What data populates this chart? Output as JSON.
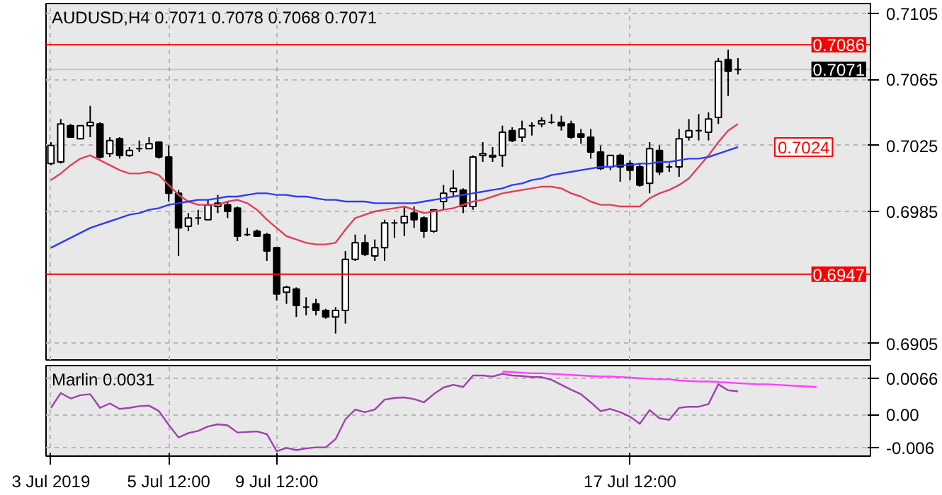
{
  "chart_data": [
    {
      "type": "candlestick",
      "title": "AUDUSD,H4  0.7071 0.7078 0.7068 0.7071",
      "categories": [
        null,
        null,
        null,
        null,
        null,
        null,
        null,
        null,
        null,
        null,
        null,
        null,
        null,
        null,
        null,
        null,
        null,
        null,
        null,
        null,
        null,
        null,
        null,
        null,
        null,
        null,
        null,
        null,
        null,
        null,
        null,
        null,
        null,
        null,
        null,
        null,
        null,
        null,
        null,
        null,
        null,
        null,
        null,
        null,
        null,
        null,
        null,
        null,
        null,
        null,
        null,
        null,
        null,
        null,
        null,
        null,
        null,
        null,
        null,
        null,
        null,
        null,
        null,
        null,
        null,
        null,
        null,
        null,
        null,
        null,
        null,
        null,
        null,
        null,
        null,
        null,
        null,
        null,
        null,
        null,
        null,
        null,
        null,
        null
      ],
      "ohlc": [
        [
          0.7014,
          0.7027,
          0.7013,
          0.7025
        ],
        [
          0.7015,
          0.7041,
          0.7014,
          0.7038
        ],
        [
          0.7037,
          0.7038,
          0.703,
          0.703
        ],
        [
          0.7029,
          0.7037,
          0.7029,
          0.7037
        ],
        [
          0.7037,
          0.7049,
          0.703,
          0.7039
        ],
        [
          0.7038,
          0.7039,
          0.7017,
          0.7018
        ],
        [
          0.702,
          0.703,
          0.7018,
          0.7028
        ],
        [
          0.7029,
          0.703,
          0.7017,
          0.7019
        ],
        [
          0.7019,
          0.7024,
          0.7018,
          0.7022
        ],
        [
          0.7023,
          0.7028,
          0.7021,
          0.7023
        ],
        [
          0.7023,
          0.703,
          0.7023,
          0.7026
        ],
        [
          0.7027,
          0.7027,
          0.7017,
          0.7018
        ],
        [
          0.7018,
          0.7025,
          0.6991,
          0.6996
        ],
        [
          0.6996,
          0.6998,
          0.6958,
          0.6975
        ],
        [
          0.6976,
          0.6984,
          0.6973,
          0.6981
        ],
        [
          0.6981,
          0.6986,
          0.6977,
          0.6981
        ],
        [
          0.698,
          0.6992,
          0.698,
          0.6989
        ],
        [
          0.6988,
          0.6995,
          0.6984,
          0.699
        ],
        [
          0.6989,
          0.6991,
          0.6981,
          0.6985
        ],
        [
          0.6987,
          0.6988,
          0.6967,
          0.697
        ],
        [
          0.6971,
          0.6975,
          0.697,
          0.6971
        ],
        [
          0.6973,
          0.6974,
          0.697,
          0.697
        ],
        [
          0.6971,
          0.6972,
          0.6955,
          0.6961
        ],
        [
          0.6963,
          0.6963,
          0.6931,
          0.6935
        ],
        [
          0.6936,
          0.694,
          0.6929,
          0.6939
        ],
        [
          0.6938,
          0.6939,
          0.6921,
          0.6928
        ],
        [
          0.6927,
          0.6933,
          0.6922,
          0.6927
        ],
        [
          0.6929,
          0.6932,
          0.6922,
          0.6925
        ],
        [
          0.6925,
          0.6926,
          0.692,
          0.6921
        ],
        [
          0.6921,
          0.6927,
          0.6911,
          0.6925
        ],
        [
          0.6925,
          0.6961,
          0.6917,
          0.6956
        ],
        [
          0.6956,
          0.6971,
          0.6955,
          0.6966
        ],
        [
          0.6966,
          0.6971,
          0.6958,
          0.6959
        ],
        [
          0.6958,
          0.6968,
          0.6955,
          0.6963
        ],
        [
          0.6963,
          0.698,
          0.6955,
          0.6978
        ],
        [
          0.6978,
          0.698,
          0.6969,
          0.6978
        ],
        [
          0.6978,
          0.6988,
          0.697,
          0.6982
        ],
        [
          0.6984,
          0.6988,
          0.6975,
          0.698
        ],
        [
          0.6981,
          0.6982,
          0.6969,
          0.6973
        ],
        [
          0.6973,
          0.6986,
          0.6972,
          0.6986
        ],
        [
          0.6991,
          0.7001,
          0.6986,
          0.6996
        ],
        [
          0.6997,
          0.701,
          0.6994,
          0.6999
        ],
        [
          0.6998,
          0.6999,
          0.6984,
          0.6988
        ],
        [
          0.6988,
          0.7019,
          0.6986,
          0.7018
        ],
        [
          0.7019,
          0.7027,
          0.7015,
          0.702
        ],
        [
          0.7018,
          0.7024,
          0.7015,
          0.7019
        ],
        [
          0.7019,
          0.7037,
          0.7012,
          0.7033
        ],
        [
          0.7034,
          0.7036,
          0.7027,
          0.7028
        ],
        [
          0.703,
          0.704,
          0.7027,
          0.7035
        ],
        [
          0.7037,
          0.7039,
          0.7031,
          0.7037
        ],
        [
          0.7038,
          0.7042,
          0.7036,
          0.704
        ],
        [
          0.7039,
          0.7044,
          0.7038,
          0.7039
        ],
        [
          0.7039,
          0.7043,
          0.7034,
          0.7037
        ],
        [
          0.7038,
          0.704,
          0.7029,
          0.703
        ],
        [
          0.7032,
          0.7035,
          0.7026,
          0.703
        ],
        [
          0.703,
          0.7035,
          0.7017,
          0.7021
        ],
        [
          0.7021,
          0.7025,
          0.701,
          0.7011
        ],
        [
          0.7012,
          0.7019,
          0.701,
          0.7019
        ],
        [
          0.7019,
          0.702,
          0.7003,
          0.7012
        ],
        [
          0.7014,
          0.7016,
          0.7004,
          0.701
        ],
        [
          0.7012,
          0.7014,
          0.7,
          0.7001
        ],
        [
          0.7002,
          0.7027,
          0.6996,
          0.7023
        ],
        [
          0.7022,
          0.7025,
          0.7007,
          0.7009
        ],
        [
          0.7012,
          0.7014,
          0.7009,
          0.7012
        ],
        [
          0.7012,
          0.7035,
          0.7006,
          0.7029
        ],
        [
          0.703,
          0.7041,
          0.7028,
          0.7034
        ],
        [
          0.7034,
          0.7044,
          0.7028,
          0.7034
        ],
        [
          0.7033,
          0.7045,
          0.7028,
          0.7041
        ],
        [
          0.7042,
          0.7078,
          0.7038,
          0.7076
        ],
        [
          0.7077,
          0.7083,
          0.7055,
          0.707
        ],
        [
          0.7071,
          0.7078,
          0.7068,
          0.7071
        ],
        null,
        null,
        null,
        null,
        null,
        null,
        null,
        null,
        null,
        null,
        null,
        null,
        null
      ],
      "series": [
        {
          "type": "line",
          "color": "#e0405a",
          "values": [
            0.7004,
            0.7008,
            0.7013,
            0.7017,
            0.7019,
            0.7016,
            0.7013,
            0.701,
            0.7008,
            0.7008,
            0.7009,
            0.7007,
            0.7001,
            0.6995,
            0.6991,
            0.6989,
            0.6989,
            0.6989,
            0.6991,
            0.6992,
            0.699,
            0.6986,
            0.698,
            0.6975,
            0.697,
            0.6968,
            0.6966,
            0.6965,
            0.6965,
            0.6966,
            0.6974,
            0.6981,
            0.6983,
            0.6985,
            0.6986,
            0.6987,
            0.6988,
            0.6986,
            0.6984,
            0.6985,
            0.6986,
            0.6987,
            0.6989,
            0.6991,
            0.6992,
            0.6994,
            0.6996,
            0.6997,
            0.6998,
            0.6999,
            0.7,
            0.7,
            0.6999,
            0.6996,
            0.6994,
            0.6991,
            0.6989,
            0.6989,
            0.6988,
            0.6988,
            0.6988,
            0.6993,
            0.6996,
            0.6998,
            0.7001,
            0.7005,
            0.7012,
            0.7019,
            0.7027,
            0.7034,
            0.7038,
            null,
            null,
            null,
            null,
            null,
            null,
            null,
            null,
            null,
            null,
            null,
            null,
            null
          ]
        },
        {
          "type": "line",
          "color": "#2f3cf0",
          "values": [
            0.6963,
            0.6966,
            0.6969,
            0.6972,
            0.6975,
            0.6977,
            0.6979,
            0.6981,
            0.6983,
            0.6984,
            0.6986,
            0.6987,
            0.6989,
            0.699,
            0.6991,
            0.6992,
            0.6992,
            0.6993,
            0.6994,
            0.6994,
            0.6995,
            0.6996,
            0.6996,
            0.6995,
            0.6995,
            0.6994,
            0.6994,
            0.6993,
            0.6992,
            0.6992,
            0.6991,
            0.6991,
            0.6991,
            0.699,
            0.699,
            0.699,
            0.699,
            0.699,
            0.6991,
            0.6992,
            0.6993,
            0.6994,
            0.6995,
            0.6996,
            0.6997,
            0.6998,
            0.6999,
            0.7001,
            0.7002,
            0.7004,
            0.7005,
            0.7007,
            0.7008,
            0.7009,
            0.701,
            0.7011,
            0.7012,
            0.7012,
            0.7013,
            0.7013,
            0.7014,
            0.7014,
            0.7015,
            0.7015,
            0.7016,
            0.7017,
            0.7017,
            0.7018,
            0.702,
            0.7022,
            0.7024,
            null,
            null,
            null,
            null,
            null,
            null,
            null,
            null,
            null,
            null,
            null,
            null,
            null
          ]
        }
      ],
      "ref_lines": [
        {
          "axis": "y",
          "value": 0.7086,
          "label": "0.7086",
          "color": "#ff0000"
        },
        {
          "axis": "y",
          "value": 0.6947,
          "label": "0.6947",
          "color": "#ff0000"
        },
        {
          "axis": "y",
          "value": 0.7071,
          "label": "0.7071",
          "color": "#000000"
        }
      ],
      "annotations": [
        {
          "text": "0.7024",
          "y": 0.7024
        }
      ],
      "ylim": [
        0.6895,
        0.7111
      ],
      "yticks": [
        {
          "value": 0.7105,
          "label": "0.7105"
        },
        {
          "value": 0.7065,
          "label": "0.7065"
        },
        {
          "value": 0.7025,
          "label": "0.7025"
        },
        {
          "value": 0.6985,
          "label": "0.6985"
        },
        {
          "value": 0.6905,
          "label": "0.6905"
        }
      ],
      "grid": true
    },
    {
      "type": "line",
      "title": "Marlin 0.0031",
      "categories": [
        "3 Jul 2019",
        null,
        null,
        null,
        null,
        null,
        null,
        null,
        null,
        null,
        null,
        null,
        "5 Jul 12:00",
        null,
        null,
        null,
        null,
        null,
        null,
        null,
        null,
        null,
        null,
        "9 Jul 12:00",
        null,
        null,
        null,
        null,
        null,
        null,
        null,
        null,
        null,
        null,
        null,
        null,
        null,
        null,
        null,
        null,
        null,
        null,
        null,
        null,
        null,
        null,
        null,
        null,
        null,
        null,
        null,
        null,
        null,
        null,
        null,
        null,
        null,
        null,
        null,
        "17 Jul 12:00",
        null,
        null,
        null,
        null,
        null,
        null,
        null,
        null,
        null,
        null,
        null,
        null,
        null,
        null,
        null,
        null,
        null,
        null,
        null,
        null,
        null,
        null,
        null,
        null
      ],
      "series": [
        {
          "color": "#a040b0",
          "values": [
            0.0012,
            0.0039,
            0.0029,
            0.0035,
            0.0037,
            0.0012,
            0.002,
            0.001,
            0.0012,
            0.0015,
            0.0016,
            0.0006,
            -0.0019,
            -0.0042,
            -0.0034,
            -0.003,
            -0.0022,
            -0.0018,
            -0.002,
            -0.0033,
            -0.0032,
            -0.0031,
            -0.0036,
            -0.0067,
            -0.0061,
            -0.0065,
            -0.0062,
            -0.006,
            -0.006,
            -0.0045,
            -0.0009,
            0.0009,
            0.0004,
            0.0009,
            0.0027,
            0.003,
            0.0031,
            0.0028,
            0.0022,
            0.0037,
            0.0049,
            0.0054,
            0.005,
            0.0071,
            0.0071,
            0.0069,
            0.0074,
            0.0071,
            0.007,
            0.0068,
            0.0068,
            0.0063,
            0.0054,
            0.0045,
            0.0037,
            0.0022,
            0.0006,
            0.001,
            0.0004,
            -0.0004,
            -0.0017,
            0.0008,
            -0.0007,
            -0.001,
            0.0012,
            0.0014,
            0.0014,
            0.0019,
            0.0055,
            0.0044,
            0.0042,
            null,
            null,
            null,
            null,
            null,
            null,
            null,
            null,
            null,
            null,
            null,
            null,
            null
          ]
        },
        {
          "color": "#ff40ff",
          "values": [
            null,
            null,
            null,
            null,
            null,
            null,
            null,
            null,
            null,
            null,
            null,
            null,
            null,
            null,
            null,
            null,
            null,
            null,
            null,
            null,
            null,
            null,
            null,
            null,
            null,
            null,
            null,
            null,
            null,
            null,
            null,
            null,
            null,
            null,
            null,
            null,
            null,
            null,
            null,
            null,
            null,
            null,
            null,
            null,
            null,
            null,
            0.0078,
            0.0077,
            0.0076,
            0.0075,
            0.0075,
            0.0074,
            0.0073,
            0.0072,
            0.0071,
            0.007,
            0.0069,
            0.0069,
            0.0068,
            0.0067,
            0.0066,
            0.0065,
            0.0064,
            0.0064,
            0.0062,
            0.0061,
            0.006,
            0.006,
            0.0059,
            0.0058,
            0.0057,
            0.0056,
            0.0055,
            0.0055,
            0.0054,
            0.0053,
            0.0052,
            0.0051,
            0.005,
            null,
            null,
            null,
            null,
            null
          ]
        }
      ],
      "ylim": [
        -0.0076,
        0.0089
      ],
      "yticks": [
        {
          "value": 0.0066,
          "label": "0.0066"
        },
        {
          "value": 0,
          "label": "0.00"
        },
        {
          "value": -0.006,
          "label": "-0.006"
        }
      ],
      "grid": true
    }
  ]
}
